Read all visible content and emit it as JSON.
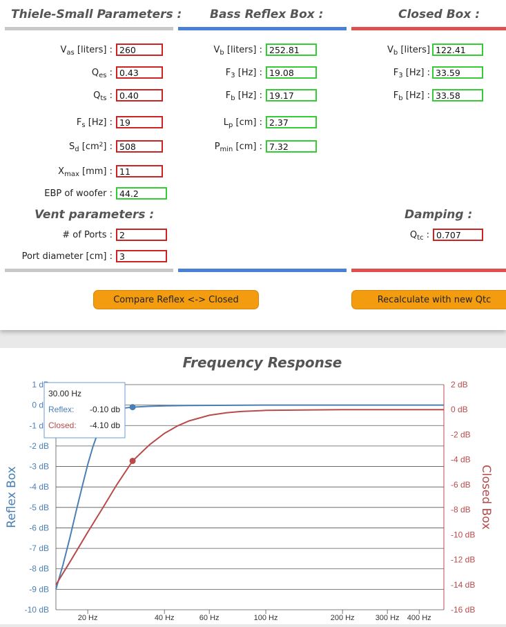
{
  "params": {
    "title": "Thiele-Small Parameters :",
    "vas": {
      "label_pre": "V",
      "label_sub": "as",
      "label_post": " [liters] :",
      "value": "260"
    },
    "qes": {
      "label_pre": "Q",
      "label_sub": "es",
      "label_post": " :",
      "value": "0.43"
    },
    "qts": {
      "label_pre": "Q",
      "label_sub": "ts",
      "label_post": " :",
      "value": "0.40"
    },
    "fs": {
      "label_pre": "F",
      "label_sub": "s",
      "label_post": " [Hz] :",
      "value": "19"
    },
    "sd": {
      "label_pre": "S",
      "label_sub": "d",
      "label_mid": " [cm",
      "label_sup": "2",
      "label_post": "] :",
      "value": "508"
    },
    "xmax": {
      "label_pre": "X",
      "label_sub": "max",
      "label_post": " [mm] :",
      "value": "11"
    },
    "ebp": {
      "label": "EBP of woofer :",
      "value": "44.2"
    }
  },
  "vent": {
    "title": "Vent parameters :",
    "ports": {
      "label": "# of Ports :",
      "value": "2"
    },
    "diameter": {
      "label": "Port diameter [cm] :",
      "value": "3"
    }
  },
  "reflex": {
    "title": "Bass Reflex Box :",
    "vb": {
      "label_pre": "V",
      "label_sub": "b",
      "label_post": " [liters] :",
      "value": "252.81"
    },
    "f3": {
      "label_pre": "F",
      "label_sub": "3",
      "label_post": " [Hz] :",
      "value": "19.08"
    },
    "fb": {
      "label_pre": "F",
      "label_sub": "b",
      "label_post": " [Hz] :",
      "value": "19.17"
    },
    "lp": {
      "label_pre": "L",
      "label_sub": "p",
      "label_post": " [cm] :",
      "value": "2.37"
    },
    "pmin": {
      "label_pre": "P",
      "label_sub": "min",
      "label_post": " [cm] :",
      "value": "7.32"
    }
  },
  "closed": {
    "title": "Closed Box :",
    "vb": {
      "label_pre": "V",
      "label_sub": "b",
      "label_post": " [liters]",
      "value": "122.41"
    },
    "f3": {
      "label_pre": "F",
      "label_sub": "3",
      "label_post": " [Hz] :",
      "value": "33.59"
    },
    "fb": {
      "label_pre": "F",
      "label_sub": "b",
      "label_post": " [Hz] :",
      "value": "33.58"
    }
  },
  "damping": {
    "title": "Damping :",
    "qtc": {
      "label_pre": "Q",
      "label_sub": "tc",
      "label_post": " :",
      "value": "0.707"
    }
  },
  "buttons": {
    "compare": "Compare Reflex <-> Closed",
    "recalc": "Recalculate with new Qtc"
  },
  "colors": {
    "reflex": "#4a7fb5",
    "closed": "#b84a4a",
    "input_border": "#cc2222",
    "output_border": "#33cc33",
    "button": "#f39c0f"
  },
  "chart_data": {
    "type": "line",
    "title": "Frequency Response",
    "x_scale": "log",
    "x_ticks": [
      20,
      40,
      60,
      100,
      200,
      300,
      400
    ],
    "x_tick_labels": [
      "20 Hz",
      "40 Hz",
      "60 Hz",
      "100 Hz",
      "200 Hz",
      "300 Hz",
      "400 Hz"
    ],
    "xlim": [
      15,
      500
    ],
    "y_left": {
      "label": "Reflex Box",
      "range": [
        -10,
        1
      ],
      "ticks": [
        1,
        0,
        -1,
        -2,
        -3,
        -4,
        -5,
        -6,
        -7,
        -8,
        -9,
        -10
      ],
      "tick_labels": [
        "1 dB",
        "0 dB",
        "-1 dB",
        "-2 dB",
        "-3 dB",
        "-4 dB",
        "-5 dB",
        "-6 dB",
        "-7 dB",
        "-8 dB",
        "-9 dB",
        "-10 dB"
      ]
    },
    "y_right": {
      "label": "Closed Box",
      "range": [
        -16,
        2
      ],
      "ticks": [
        2,
        0,
        -2,
        -4,
        -6,
        -8,
        -10,
        -12,
        -14,
        -16
      ],
      "tick_labels": [
        "2 dB",
        "0 dB",
        "-2 dB",
        "-4 dB",
        "-6 dB",
        "-8 dB",
        "-10 dB",
        "-12 dB",
        "-14 dB",
        "-16 dB"
      ]
    },
    "series": [
      {
        "name": "Reflex Box",
        "axis": "left",
        "x": [
          15,
          16,
          17,
          18,
          19,
          20,
          21,
          22,
          23,
          24,
          26,
          28,
          30,
          35,
          40,
          50,
          100,
          200,
          500
        ],
        "y": [
          -9.0,
          -7.8,
          -6.5,
          -5.2,
          -4.0,
          -2.9,
          -2.0,
          -1.3,
          -0.8,
          -0.5,
          -0.25,
          -0.14,
          -0.1,
          -0.06,
          -0.04,
          -0.02,
          0.0,
          0.0,
          0.0
        ]
      },
      {
        "name": "Closed Box",
        "axis": "right",
        "x": [
          15,
          17,
          20,
          23,
          26,
          30,
          35,
          40,
          45,
          50,
          60,
          70,
          80,
          100,
          150,
          200,
          300,
          500
        ],
        "y": [
          -14.0,
          -12.2,
          -9.8,
          -7.8,
          -6.0,
          -4.1,
          -2.8,
          -1.9,
          -1.3,
          -0.9,
          -0.45,
          -0.25,
          -0.15,
          -0.06,
          -0.02,
          0.0,
          0.0,
          0.0
        ]
      }
    ],
    "tooltip": {
      "header": "30.00 Hz",
      "x": 30,
      "rows": [
        {
          "name": "Reflex:",
          "value": "-0.10 db"
        },
        {
          "name": "Closed:",
          "value": "-4.10 db"
        }
      ]
    }
  }
}
